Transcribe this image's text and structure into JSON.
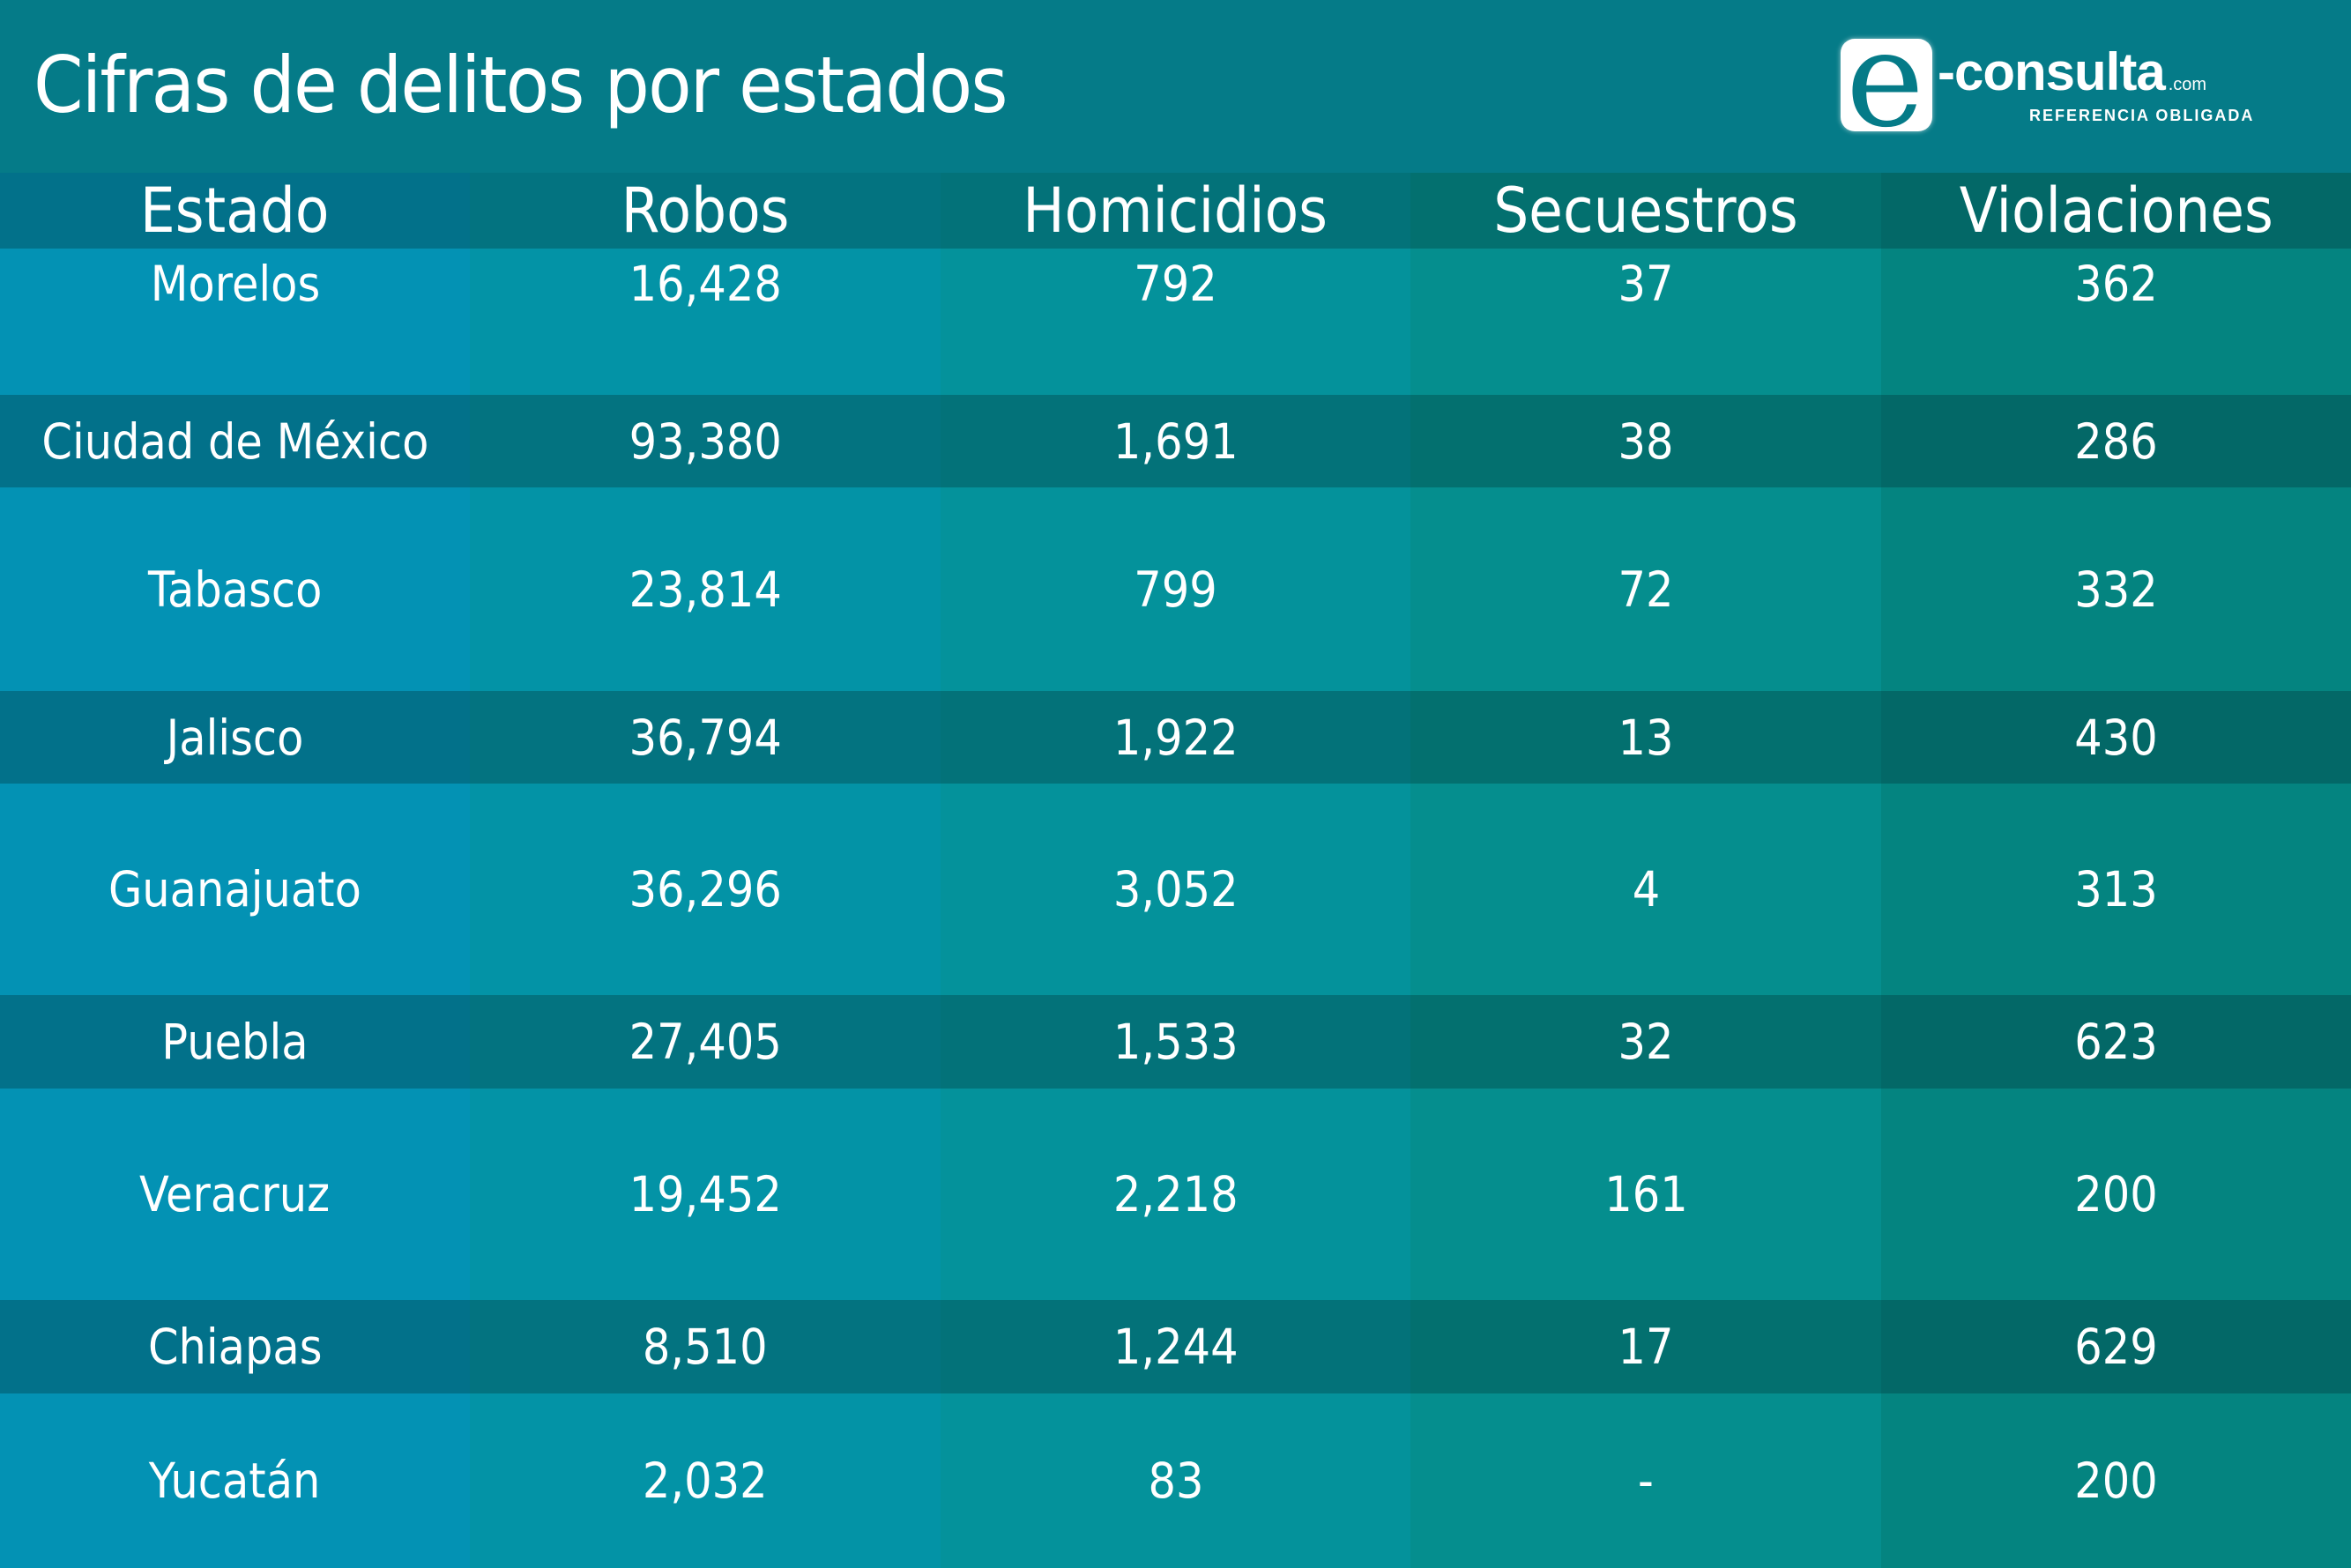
{
  "header": {
    "title": "Cifras de delitos por estados",
    "logo": {
      "letter": "e",
      "wordmark": "-consulta",
      "domain_suffix": ".com",
      "tagline": "REFERENCIA OBLIGADA"
    }
  },
  "table": {
    "columns": [
      "Estado",
      "Robos",
      "Homicidios",
      "Secuestros",
      "Violaciones"
    ],
    "rows": [
      {
        "estado": "Morelos",
        "robos": "16,428",
        "homicidios": "792",
        "secuestros": "37",
        "violaciones": "362"
      },
      {
        "estado": "Ciudad de México",
        "robos": "93,380",
        "homicidios": "1,691",
        "secuestros": "38",
        "violaciones": "286"
      },
      {
        "estado": "Tabasco",
        "robos": "23,814",
        "homicidios": "799",
        "secuestros": "72",
        "violaciones": "332"
      },
      {
        "estado": "Jalisco",
        "robos": "36,794",
        "homicidios": "1,922",
        "secuestros": "13",
        "violaciones": "430"
      },
      {
        "estado": "Guanajuato",
        "robos": "36,296",
        "homicidios": "3,052",
        "secuestros": "4",
        "violaciones": "313"
      },
      {
        "estado": "Puebla",
        "robos": "27,405",
        "homicidios": "1,533",
        "secuestros": "32",
        "violaciones": "623"
      },
      {
        "estado": "Veracruz",
        "robos": "19,452",
        "homicidios": "2,218",
        "secuestros": "161",
        "violaciones": "200"
      },
      {
        "estado": "Chiapas",
        "robos": "8,510",
        "homicidios": "1,244",
        "secuestros": "17",
        "violaciones": "629"
      },
      {
        "estado": "Yucatán",
        "robos": "2,032",
        "homicidios": "83",
        "secuestros": "-",
        "violaciones": "200"
      }
    ]
  },
  "colors": {
    "header_bg": "#057b88",
    "light_columns": [
      "#0392b4",
      "#0393a6",
      "#04929b",
      "#058e8e",
      "#048480"
    ],
    "dark_columns": [
      "#02718a",
      "#037380",
      "#037279",
      "#03706f",
      "#036867"
    ],
    "text": "#ffffff"
  }
}
